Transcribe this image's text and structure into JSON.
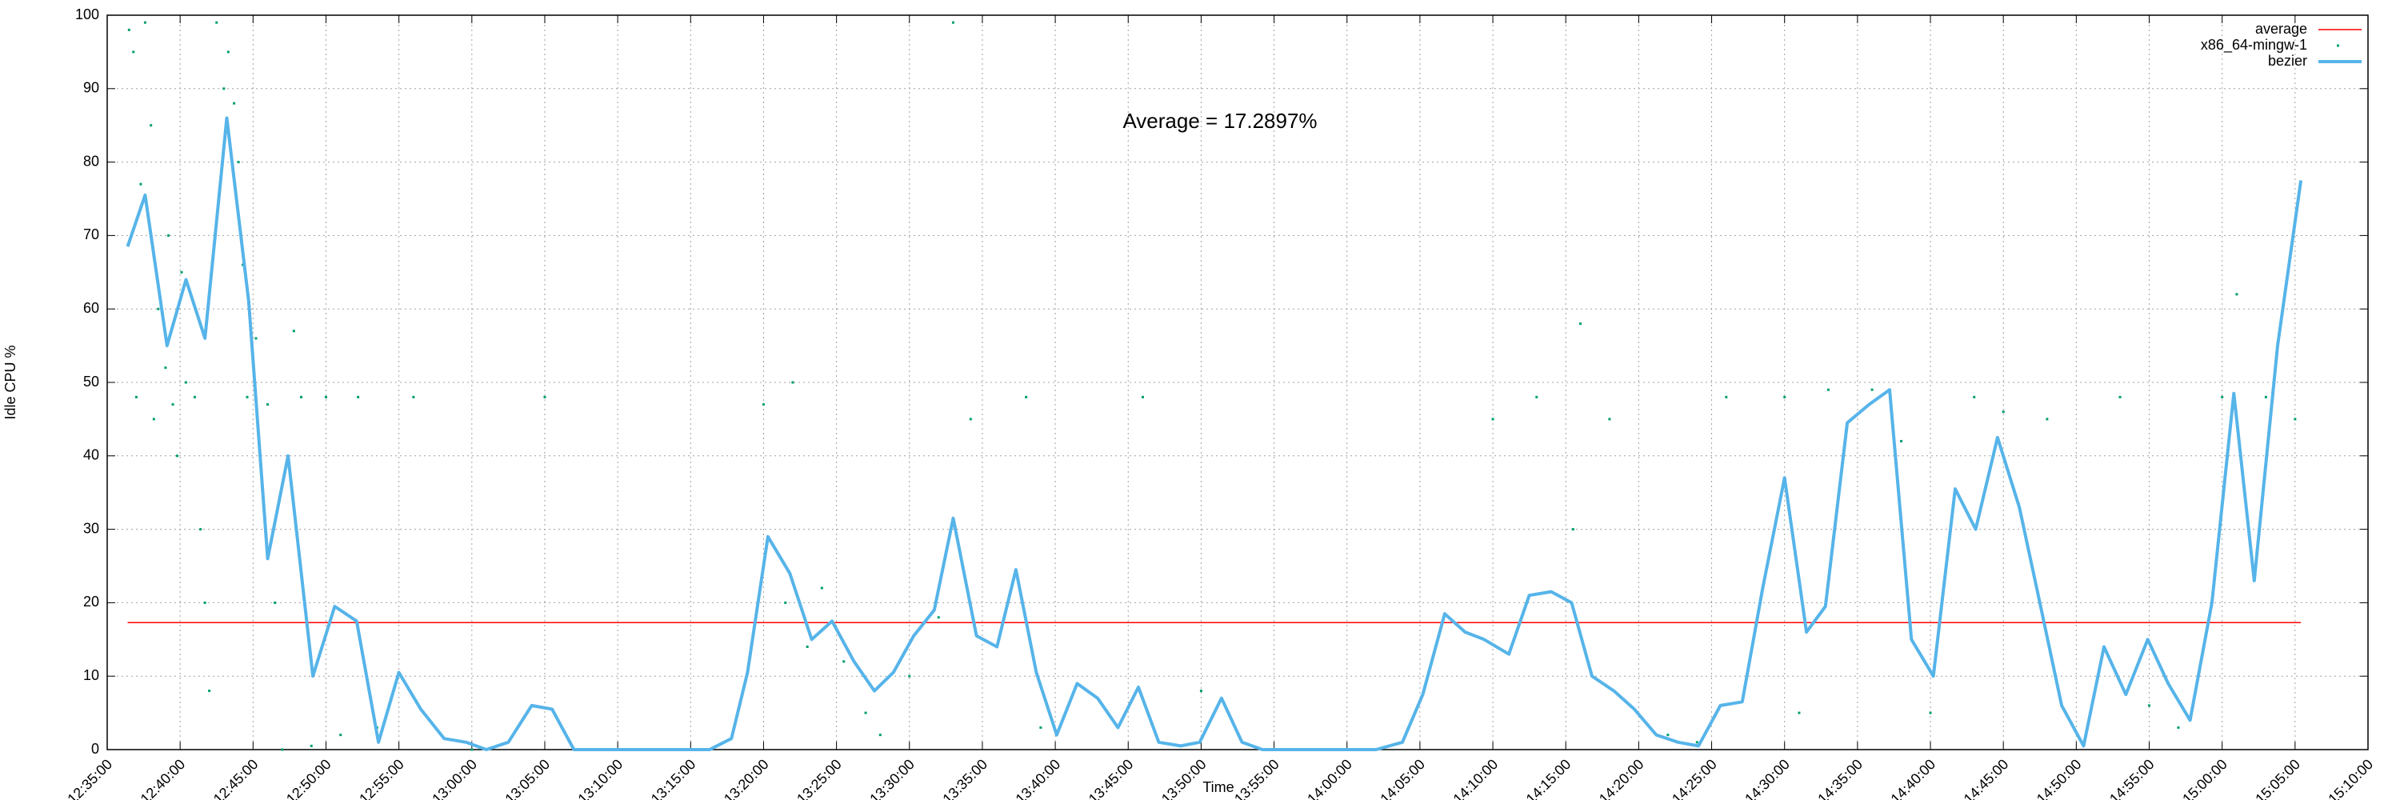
{
  "chart_data": {
    "type": "scatter",
    "x_label": "Time",
    "y_label": "Idle CPU %",
    "annotation": "Average = 17.2897%",
    "grid": true,
    "legend": "upper right",
    "xlim": [
      755,
      910
    ],
    "xticks": [
      {
        "value": 755,
        "label": "12:35:00"
      },
      {
        "value": 760,
        "label": "12:40:00"
      },
      {
        "value": 765,
        "label": "12:45:00"
      },
      {
        "value": 770,
        "label": "12:50:00"
      },
      {
        "value": 775,
        "label": "12:55:00"
      },
      {
        "value": 780,
        "label": "13:00:00"
      },
      {
        "value": 785,
        "label": "13:05:00"
      },
      {
        "value": 790,
        "label": "13:10:00"
      },
      {
        "value": 795,
        "label": "13:15:00"
      },
      {
        "value": 800,
        "label": "13:20:00"
      },
      {
        "value": 805,
        "label": "13:25:00"
      },
      {
        "value": 810,
        "label": "13:30:00"
      },
      {
        "value": 815,
        "label": "13:35:00"
      },
      {
        "value": 820,
        "label": "13:40:00"
      },
      {
        "value": 825,
        "label": "13:45:00"
      },
      {
        "value": 830,
        "label": "13:50:00"
      },
      {
        "value": 835,
        "label": "13:55:00"
      },
      {
        "value": 840,
        "label": "14:00:00"
      },
      {
        "value": 845,
        "label": "14:05:00"
      },
      {
        "value": 850,
        "label": "14:10:00"
      },
      {
        "value": 855,
        "label": "14:15:00"
      },
      {
        "value": 860,
        "label": "14:20:00"
      },
      {
        "value": 865,
        "label": "14:25:00"
      },
      {
        "value": 870,
        "label": "14:30:00"
      },
      {
        "value": 875,
        "label": "14:35:00"
      },
      {
        "value": 880,
        "label": "14:40:00"
      },
      {
        "value": 885,
        "label": "14:45:00"
      },
      {
        "value": 890,
        "label": "14:50:00"
      },
      {
        "value": 895,
        "label": "14:55:00"
      },
      {
        "value": 900,
        "label": "15:00:00"
      },
      {
        "value": 905,
        "label": "15:05:00"
      },
      {
        "value": 910,
        "label": "15:10:00"
      }
    ],
    "ylim": [
      0,
      100
    ],
    "yticks": [
      0,
      10,
      20,
      30,
      40,
      50,
      60,
      70,
      80,
      90,
      100
    ],
    "series": [
      {
        "name": "average",
        "type": "line",
        "color": "#ff0000",
        "x": [
          756.4,
          905.4
        ],
        "values": [
          17.2897,
          17.2897
        ]
      },
      {
        "name": "x86_64-mingw-1",
        "type": "scatter",
        "color": "#009e73",
        "x": [
          756.5,
          756.8,
          757,
          757.3,
          757.6,
          758,
          758.2,
          758.5,
          759,
          759.2,
          759.5,
          759.8,
          760.1,
          760.4,
          761,
          761.4,
          761.7,
          762,
          762.5,
          763,
          763.3,
          763.7,
          764,
          764.3,
          764.6,
          765.2,
          766,
          766.5,
          767,
          767.8,
          768.3,
          769,
          770,
          771,
          772.2,
          773.5,
          776,
          780,
          785,
          790,
          800,
          801.5,
          802,
          803,
          804,
          805.5,
          807,
          808,
          810,
          812,
          813,
          814.2,
          818,
          819,
          826,
          830,
          840,
          850,
          853,
          855.5,
          856,
          858,
          862,
          864,
          866,
          870,
          871,
          873,
          876,
          878,
          880,
          883,
          885,
          888,
          893,
          895,
          897,
          900,
          901,
          903,
          905
        ],
        "values": [
          98,
          95,
          48,
          77,
          99,
          85,
          45,
          60,
          52,
          70,
          47,
          40,
          65,
          50,
          48,
          30,
          20,
          8,
          99,
          90,
          95,
          88,
          80,
          66,
          48,
          56,
          47,
          20,
          0,
          57,
          48,
          0.5,
          48,
          2,
          48,
          3,
          48,
          0,
          48,
          0,
          47,
          20,
          50,
          14,
          22,
          12,
          5,
          2,
          10,
          18,
          99,
          45,
          48,
          3,
          48,
          8,
          0,
          45,
          48,
          30,
          58,
          45,
          2,
          1,
          48,
          48,
          5,
          49,
          49,
          42,
          5,
          48,
          46,
          45,
          48,
          6,
          3,
          48,
          62,
          48,
          45
        ]
      },
      {
        "name": "bezier",
        "type": "line",
        "color": "#56b4e9",
        "x": [
          756.4,
          757.6,
          759.1,
          760.4,
          761.7,
          763.2,
          764.7,
          766.0,
          767.4,
          769.1,
          770.6,
          772.1,
          773.6,
          775.0,
          776.5,
          778.1,
          779.6,
          781.0,
          782.5,
          784.1,
          785.5,
          787.0,
          796.3,
          797.8,
          798.9,
          800.3,
          801.8,
          803.3,
          804.7,
          806.2,
          807.6,
          808.9,
          810.3,
          811.7,
          813.0,
          814.6,
          816.0,
          817.3,
          818.7,
          820.1,
          821.5,
          822.9,
          824.3,
          825.7,
          827.1,
          828.6,
          829.9,
          831.4,
          832.8,
          834.2,
          842.0,
          843.8,
          845.2,
          846.7,
          848.1,
          849.4,
          851.1,
          852.5,
          854.0,
          855.4,
          856.8,
          858.3,
          859.7,
          861.2,
          862.7,
          864.1,
          865.6,
          867.1,
          868.5,
          870.0,
          871.5,
          872.8,
          874.3,
          875.8,
          877.2,
          878.7,
          880.2,
          881.7,
          883.1,
          884.6,
          886.1,
          887.5,
          889.0,
          890.5,
          891.9,
          893.4,
          894.9,
          896.3,
          897.8,
          899.3,
          900.8,
          902.2,
          903.8,
          905.4
        ],
        "values": [
          68.5,
          75.5,
          55,
          64,
          56,
          86,
          61,
          26,
          40,
          10,
          19.5,
          17.5,
          1,
          10.5,
          5.5,
          1.5,
          1,
          0,
          1,
          6,
          5.5,
          0,
          0,
          1.5,
          10.5,
          29,
          24,
          15,
          17.5,
          12,
          8,
          10.5,
          15.5,
          19,
          31.5,
          15.5,
          14,
          24.5,
          10.5,
          2,
          9,
          7,
          3,
          8.5,
          1,
          0.5,
          1,
          7,
          1,
          0,
          0,
          1,
          7.5,
          18.5,
          16,
          15,
          13,
          21,
          21.5,
          20,
          10,
          8,
          5.5,
          2,
          1,
          0.5,
          6,
          6.5,
          22,
          37,
          16,
          19.5,
          44.5,
          47,
          49,
          15,
          10,
          35.5,
          30,
          42.5,
          33,
          20,
          6,
          0.5,
          14,
          7.5,
          15,
          9,
          4,
          20,
          48.5,
          23,
          55,
          77.5
        ]
      }
    ]
  }
}
